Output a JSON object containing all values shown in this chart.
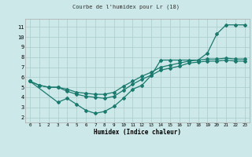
{
  "title": "Courbe de l'humidex pour Lr (18)",
  "xlabel": "Humidex (Indice chaleur)",
  "bg_color": "#cce8e8",
  "grid_color": "#aacccc",
  "line_color": "#1a7a6e",
  "xlim": [
    -0.5,
    23.5
  ],
  "ylim": [
    1.5,
    11.8
  ],
  "xticks": [
    0,
    1,
    2,
    3,
    4,
    5,
    6,
    7,
    8,
    9,
    10,
    11,
    12,
    13,
    14,
    15,
    16,
    17,
    18,
    19,
    20,
    21,
    22,
    23
  ],
  "yticks": [
    2,
    3,
    4,
    5,
    6,
    7,
    8,
    9,
    10,
    11
  ],
  "line1_x": [
    0,
    1,
    2,
    3,
    4,
    5,
    6,
    7,
    8,
    9,
    10,
    11,
    12,
    13,
    14,
    15,
    16,
    17,
    18,
    19,
    20,
    21,
    22,
    23
  ],
  "line1_y": [
    5.6,
    5.2,
    5.0,
    5.0,
    4.8,
    4.5,
    4.4,
    4.3,
    4.3,
    4.5,
    5.1,
    5.6,
    6.1,
    6.5,
    7.0,
    7.2,
    7.4,
    7.6,
    7.7,
    7.8,
    7.8,
    7.9,
    7.8,
    7.8
  ],
  "line2_x": [
    0,
    1,
    2,
    3,
    4,
    5,
    6,
    7,
    8,
    9,
    10,
    11,
    12,
    13,
    14,
    15,
    16,
    17,
    18,
    19,
    20,
    21,
    22,
    23
  ],
  "line2_y": [
    5.6,
    5.2,
    5.0,
    5.0,
    4.6,
    4.3,
    4.1,
    4.0,
    3.9,
    4.1,
    4.7,
    5.3,
    5.8,
    6.2,
    6.7,
    6.9,
    7.1,
    7.4,
    7.5,
    7.6,
    7.6,
    7.7,
    7.6,
    7.6
  ],
  "line3_x": [
    0,
    3,
    4,
    5,
    6,
    7,
    8,
    9,
    10,
    11,
    12,
    13,
    14,
    15,
    16,
    17,
    18,
    19,
    20,
    21,
    22,
    23
  ],
  "line3_y": [
    5.6,
    3.5,
    3.9,
    3.3,
    2.7,
    2.4,
    2.6,
    3.1,
    3.9,
    4.8,
    5.2,
    6.2,
    7.7,
    7.7,
    7.7,
    7.7,
    7.7,
    8.4,
    10.3,
    11.2,
    11.2,
    11.2
  ]
}
